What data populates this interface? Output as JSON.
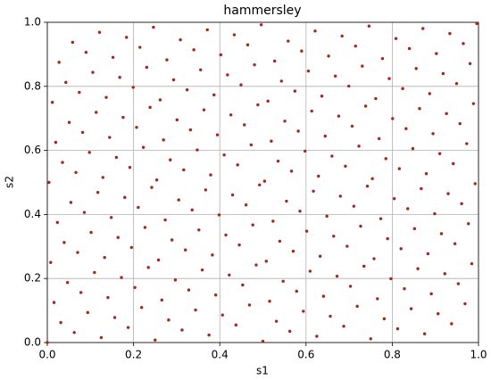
{
  "chart_data": {
    "type": "scatter",
    "title": "hammersley",
    "x_label": "s1",
    "y_label": "s2",
    "color": "#a5261b",
    "grid": true,
    "xlim": [
      0,
      1
    ],
    "ylim": [
      0,
      1
    ],
    "xticks": [
      {
        "value": 0,
        "label": "0.0"
      },
      {
        "value": 0.2,
        "label": "0.2"
      },
      {
        "value": 0.4,
        "label": "0.4"
      },
      {
        "value": 0.6,
        "label": "0.6"
      },
      {
        "value": 0.8,
        "label": "0.8"
      },
      {
        "value": 1,
        "label": "1.0"
      }
    ],
    "yticks": [
      {
        "value": 0,
        "label": "0.0"
      },
      {
        "value": 0.2,
        "label": "0.2"
      },
      {
        "value": 0.4,
        "label": "0.4"
      },
      {
        "value": 0.6,
        "label": "0.6"
      },
      {
        "value": 0.8,
        "label": "0.8"
      },
      {
        "value": 1,
        "label": "1.0"
      }
    ],
    "x": [
      0,
      0.0039,
      0.0078,
      0.0117,
      0.0156,
      0.0195,
      0.0234,
      0.0273,
      0.0313,
      0.0352,
      0.0391,
      0.043,
      0.0469,
      0.0508,
      0.0547,
      0.0586,
      0.0625,
      0.0664,
      0.0703,
      0.0742,
      0.0781,
      0.082,
      0.0859,
      0.0898,
      0.0938,
      0.0977,
      0.1016,
      0.1055,
      0.1094,
      0.1133,
      0.1172,
      0.1211,
      0.125,
      0.1289,
      0.1328,
      0.1367,
      0.1406,
      0.1445,
      0.1484,
      0.1523,
      0.1563,
      0.1602,
      0.1641,
      0.168,
      0.1719,
      0.1758,
      0.1797,
      0.1836,
      0.1875,
      0.1914,
      0.1953,
      0.1992,
      0.2031,
      0.207,
      0.2109,
      0.2148,
      0.2188,
      0.2227,
      0.2266,
      0.2305,
      0.2344,
      0.2383,
      0.2422,
      0.2461,
      0.25,
      0.2539,
      0.2578,
      0.2617,
      0.2656,
      0.2695,
      0.2734,
      0.2773,
      0.2813,
      0.2852,
      0.2891,
      0.293,
      0.2969,
      0.3008,
      0.3047,
      0.3086,
      0.3125,
      0.3164,
      0.3203,
      0.3242,
      0.3281,
      0.332,
      0.3359,
      0.3398,
      0.3438,
      0.3477,
      0.3516,
      0.3555,
      0.3594,
      0.3633,
      0.3672,
      0.3711,
      0.375,
      0.3789,
      0.3828,
      0.3867,
      0.3906,
      0.3945,
      0.3984,
      0.4023,
      0.4063,
      0.4102,
      0.4141,
      0.418,
      0.4219,
      0.4258,
      0.4297,
      0.4336,
      0.4375,
      0.4414,
      0.4453,
      0.4492,
      0.4531,
      0.457,
      0.4609,
      0.4648,
      0.4688,
      0.4727,
      0.4766,
      0.4805,
      0.4844,
      0.4883,
      0.4922,
      0.4961,
      0.5,
      0.5039,
      0.5078,
      0.5117,
      0.5156,
      0.5195,
      0.5234,
      0.5273,
      0.5313,
      0.5352,
      0.5391,
      0.543,
      0.5469,
      0.5508,
      0.5547,
      0.5586,
      0.5625,
      0.5664,
      0.5703,
      0.5742,
      0.5781,
      0.582,
      0.5859,
      0.5898,
      0.5938,
      0.5977,
      0.6016,
      0.6055,
      0.6094,
      0.6133,
      0.6172,
      0.6211,
      0.625,
      0.6289,
      0.6328,
      0.6367,
      0.6406,
      0.6445,
      0.6484,
      0.6523,
      0.6563,
      0.6602,
      0.6641,
      0.668,
      0.6719,
      0.6758,
      0.6797,
      0.6836,
      0.6875,
      0.6914,
      0.6953,
      0.6992,
      0.7031,
      0.707,
      0.7109,
      0.7148,
      0.7188,
      0.7227,
      0.7266,
      0.7305,
      0.7344,
      0.7383,
      0.7422,
      0.7461,
      0.75,
      0.7539,
      0.7578,
      0.7617,
      0.7656,
      0.7695,
      0.7734,
      0.7773,
      0.7813,
      0.7852,
      0.7891,
      0.793,
      0.7969,
      0.8008,
      0.8047,
      0.8086,
      0.8125,
      0.8164,
      0.8203,
      0.8242,
      0.8281,
      0.832,
      0.8359,
      0.8398,
      0.8438,
      0.8477,
      0.8516,
      0.8555,
      0.8594,
      0.8633,
      0.8672,
      0.8711,
      0.875,
      0.8789,
      0.8828,
      0.8867,
      0.8906,
      0.8945,
      0.8984,
      0.9023,
      0.9063,
      0.9102,
      0.9141,
      0.918,
      0.9219,
      0.9258,
      0.9297,
      0.9336,
      0.9375,
      0.9414,
      0.9453,
      0.9492,
      0.9531,
      0.957,
      0.9609,
      0.9648,
      0.9688,
      0.9727,
      0.9766,
      0.9805,
      0.9844,
      0.9883,
      0.9922,
      0.9961
    ],
    "values": [
      0,
      0.5,
      0.25,
      0.75,
      0.125,
      0.625,
      0.375,
      0.875,
      0.0625,
      0.5625,
      0.3125,
      0.8125,
      0.1875,
      0.6875,
      0.4375,
      0.9375,
      0.0313,
      0.5313,
      0.2813,
      0.7813,
      0.1563,
      0.6563,
      0.4063,
      0.9063,
      0.0938,
      0.5938,
      0.3438,
      0.8438,
      0.2188,
      0.7188,
      0.4688,
      0.9688,
      0.0156,
      0.5156,
      0.2656,
      0.7656,
      0.1406,
      0.6406,
      0.3906,
      0.8906,
      0.0781,
      0.5781,
      0.3281,
      0.8281,
      0.2031,
      0.7031,
      0.4531,
      0.9531,
      0.0469,
      0.5469,
      0.2969,
      0.7969,
      0.1719,
      0.6719,
      0.4219,
      0.9219,
      0.1094,
      0.6094,
      0.3594,
      0.8594,
      0.2344,
      0.7344,
      0.4844,
      0.9844,
      0.0078,
      0.5078,
      0.2578,
      0.7578,
      0.1328,
      0.6328,
      0.3828,
      0.8828,
      0.0703,
      0.5703,
      0.3203,
      0.8203,
      0.1953,
      0.6953,
      0.4453,
      0.9453,
      0.0391,
      0.5391,
      0.2891,
      0.7891,
      0.1641,
      0.6641,
      0.4141,
      0.9141,
      0.1016,
      0.6016,
      0.3516,
      0.8516,
      0.2266,
      0.7266,
      0.4766,
      0.9766,
      0.0234,
      0.5234,
      0.2734,
      0.7734,
      0.1484,
      0.6484,
      0.3984,
      0.8984,
      0.0859,
      0.5859,
      0.3359,
      0.8359,
      0.2109,
      0.7109,
      0.4609,
      0.9609,
      0.0547,
      0.5547,
      0.3047,
      0.8047,
      0.1797,
      0.6797,
      0.4297,
      0.9297,
      0.1172,
      0.6172,
      0.3672,
      0.8672,
      0.2422,
      0.7422,
      0.4922,
      0.9922,
      0.0039,
      0.5039,
      0.2539,
      0.7539,
      0.1289,
      0.6289,
      0.3789,
      0.8789,
      0.0664,
      0.5664,
      0.3164,
      0.8164,
      0.1914,
      0.6914,
      0.4414,
      0.9414,
      0.0352,
      0.5352,
      0.2852,
      0.7852,
      0.1602,
      0.6602,
      0.4102,
      0.9102,
      0.0977,
      0.5977,
      0.3477,
      0.8477,
      0.2227,
      0.7227,
      0.4727,
      0.9727,
      0.0195,
      0.5195,
      0.2695,
      0.7695,
      0.1445,
      0.6445,
      0.3945,
      0.8945,
      0.082,
      0.582,
      0.332,
      0.832,
      0.207,
      0.707,
      0.457,
      0.957,
      0.0508,
      0.5508,
      0.3008,
      0.8008,
      0.1758,
      0.6758,
      0.4258,
      0.9258,
      0.1133,
      0.6133,
      0.3633,
      0.8633,
      0.2383,
      0.7383,
      0.4883,
      0.9883,
      0.0117,
      0.5117,
      0.2617,
      0.7617,
      0.1367,
      0.6367,
      0.3867,
      0.8867,
      0.0742,
      0.5742,
      0.3242,
      0.8242,
      0.1992,
      0.6992,
      0.4492,
      0.9492,
      0.043,
      0.543,
      0.293,
      0.793,
      0.168,
      0.668,
      0.418,
      0.918,
      0.1055,
      0.6055,
      0.3555,
      0.8555,
      0.2305,
      0.7305,
      0.4805,
      0.9805,
      0.0273,
      0.5273,
      0.2773,
      0.7773,
      0.1523,
      0.6523,
      0.4023,
      0.9023,
      0.0898,
      0.5898,
      0.3398,
      0.8398,
      0.2148,
      0.7148,
      0.4648,
      0.9648,
      0.0586,
      0.5586,
      0.3086,
      0.8086,
      0.1836,
      0.6836,
      0.4336,
      0.9336,
      0.1211,
      0.6211,
      0.3711,
      0.8711,
      0.2461,
      0.7461,
      0.4961,
      0.9961
    ]
  }
}
